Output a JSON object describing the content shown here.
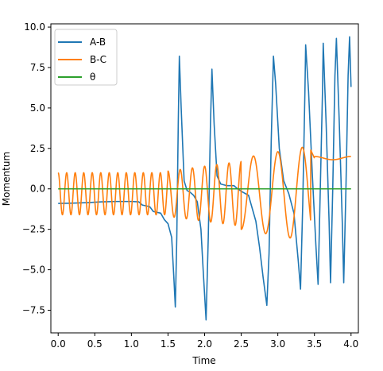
{
  "chart_data": {
    "type": "line",
    "title": "",
    "xlabel": "Time",
    "ylabel": "Momentum",
    "xlim": [
      -0.1,
      4.1
    ],
    "ylim": [
      -8.9,
      10.2
    ],
    "xticks": [
      0.0,
      0.5,
      1.0,
      1.5,
      2.0,
      2.5,
      3.0,
      3.5,
      4.0
    ],
    "xtick_labels": [
      "0.0",
      "0.5",
      "1.0",
      "1.5",
      "2.0",
      "2.5",
      "3.0",
      "3.5",
      "4.0"
    ],
    "yticks": [
      -7.5,
      -5.0,
      -2.5,
      0.0,
      2.5,
      5.0,
      7.5,
      10.0
    ],
    "ytick_labels": [
      "−7.5",
      "−5.0",
      "−2.5",
      "0.0",
      "2.5",
      "5.0",
      "7.5",
      "10.0"
    ],
    "grid": false,
    "legend": "top-left",
    "series": [
      {
        "name": "A-B",
        "color": "#1f77b4",
        "points": [
          [
            0.0,
            -0.9
          ],
          [
            0.2,
            -0.88
          ],
          [
            0.4,
            -0.85
          ],
          [
            0.6,
            -0.8
          ],
          [
            0.8,
            -0.78
          ],
          [
            1.0,
            -0.78
          ],
          [
            1.1,
            -0.8
          ],
          [
            1.15,
            -1.0
          ],
          [
            1.25,
            -1.1
          ],
          [
            1.3,
            -1.4
          ],
          [
            1.4,
            -1.5
          ],
          [
            1.45,
            -1.9
          ],
          [
            1.5,
            -2.15
          ],
          [
            1.55,
            -3.0
          ],
          [
            1.58,
            -5.5
          ],
          [
            1.6,
            -7.3
          ],
          [
            1.62,
            -3.0
          ],
          [
            1.64,
            4.0
          ],
          [
            1.655,
            8.2
          ],
          [
            1.68,
            5.0
          ],
          [
            1.72,
            0.5
          ],
          [
            1.76,
            -0.1
          ],
          [
            1.8,
            -0.2
          ],
          [
            1.85,
            -0.4
          ],
          [
            1.9,
            -0.8
          ],
          [
            1.95,
            -2.5
          ],
          [
            1.98,
            -5.0
          ],
          [
            2.02,
            -8.1
          ],
          [
            2.05,
            -3.0
          ],
          [
            2.08,
            4.0
          ],
          [
            2.1,
            7.4
          ],
          [
            2.13,
            4.0
          ],
          [
            2.17,
            0.8
          ],
          [
            2.22,
            0.3
          ],
          [
            2.3,
            0.2
          ],
          [
            2.4,
            0.2
          ],
          [
            2.45,
            0.0
          ],
          [
            2.52,
            -0.2
          ],
          [
            2.6,
            -0.4
          ],
          [
            2.7,
            -2.0
          ],
          [
            2.75,
            -3.6
          ],
          [
            2.8,
            -5.5
          ],
          [
            2.85,
            -7.2
          ],
          [
            2.88,
            -4.0
          ],
          [
            2.91,
            3.0
          ],
          [
            2.94,
            8.2
          ],
          [
            2.97,
            6.5
          ],
          [
            3.02,
            2.5
          ],
          [
            3.08,
            0.5
          ],
          [
            3.15,
            -0.3
          ],
          [
            3.22,
            -1.5
          ],
          [
            3.28,
            -4.5
          ],
          [
            3.31,
            -6.2
          ],
          [
            3.34,
            -1.0
          ],
          [
            3.37,
            6.0
          ],
          [
            3.38,
            8.9
          ],
          [
            3.42,
            6.0
          ],
          [
            3.47,
            1.0
          ],
          [
            3.52,
            -3.5
          ],
          [
            3.55,
            -5.9
          ],
          [
            3.58,
            0.0
          ],
          [
            3.61,
            6.0
          ],
          [
            3.62,
            9.0
          ],
          [
            3.66,
            4.0
          ],
          [
            3.7,
            -2.0
          ],
          [
            3.72,
            -5.8
          ],
          [
            3.75,
            0.0
          ],
          [
            3.78,
            7.0
          ],
          [
            3.8,
            9.3
          ],
          [
            3.84,
            4.0
          ],
          [
            3.88,
            -2.0
          ],
          [
            3.9,
            -5.8
          ],
          [
            3.93,
            0.0
          ],
          [
            3.96,
            7.0
          ],
          [
            3.98,
            9.4
          ],
          [
            4.0,
            6.3
          ]
        ]
      },
      {
        "name": "B-C",
        "color": "#ff7f0e",
        "points": []
      },
      {
        "name": "θ",
        "color": "#2ca02c",
        "points": [
          [
            0.0,
            0.0
          ],
          [
            4.0,
            0.0
          ]
        ]
      }
    ]
  }
}
